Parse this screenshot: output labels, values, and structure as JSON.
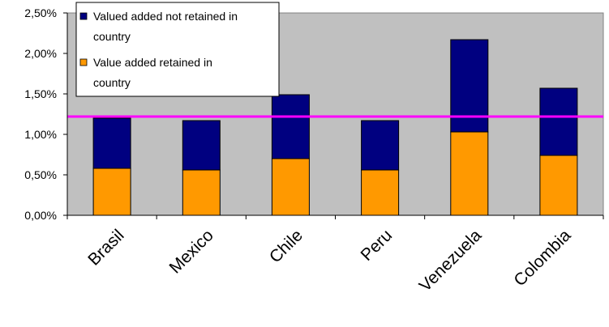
{
  "chart_data": {
    "type": "bar",
    "stacked": true,
    "categories": [
      "Brasil",
      "Mexico",
      "Chile",
      "Peru",
      "Venezuela",
      "Colombia"
    ],
    "series": [
      {
        "name": "Value added retained in country",
        "color": "#FF9900",
        "values": [
          0.58,
          0.56,
          0.7,
          0.56,
          1.03,
          0.74
        ]
      },
      {
        "name": "Valued added not retained in country",
        "color": "#000080",
        "values": [
          0.62,
          0.61,
          0.79,
          0.61,
          1.14,
          0.83
        ]
      }
    ],
    "reference_line": {
      "value": 1.22,
      "color": "#FF00FF"
    },
    "yticks": [
      "0,00%",
      "0,50%",
      "1,00%",
      "1,50%",
      "2,00%",
      "2,50%"
    ],
    "ylim": [
      0,
      2.5
    ],
    "ytick_step": 0.5,
    "grid": false,
    "plot_background": "#C0C0C0",
    "legend_position": "top-left",
    "legend": [
      {
        "line1": "Valued added not retained in",
        "line2": "country",
        "color": "#000080"
      },
      {
        "line1": "Value added retained in",
        "line2": "country",
        "color": "#FF9900"
      }
    ]
  }
}
